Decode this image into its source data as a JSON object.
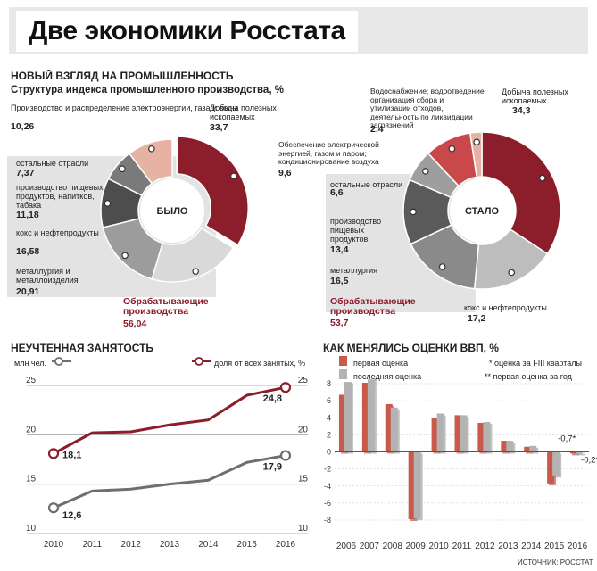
{
  "header": {
    "title": "Две экономики Росстата"
  },
  "industry": {
    "section_title": "НОВЫЙ ВЗГЛЯД НА ПРОМЫШЛЕННОСТЬ",
    "subtitle": "Структура индекса промышленного производства, %"
  },
  "employment": {
    "section_title": "НЕУЧТЕННАЯ ЗАНЯТОСТЬ"
  },
  "gdp": {
    "section_title": "КАК МЕНЯЛИСЬ ОЦЕНКИ ВВП, %"
  },
  "source": "ИСТОЧНИК: РОССТАТ",
  "colors": {
    "dark_red": "#8c1d2a",
    "red": "#c9494a",
    "pink": "#e6b2a4",
    "dark_gray": "#5a5a5a",
    "mid_gray": "#7d7d7d",
    "gray": "#9e9e9e",
    "light_gray": "#bdbdbd",
    "lighter_gray": "#d6d6d6"
  },
  "chart_data": [
    {
      "type": "pie",
      "center_label": "БЫЛО",
      "slices": [
        {
          "label": "Добыча полезных ископаемых",
          "value": 33.7,
          "value_text": "33,7",
          "color": "#8c1d2a"
        },
        {
          "label": "металлургия и металлоизделия",
          "value": 20.91,
          "value_text": "20,91",
          "color": "#d9d9d9"
        },
        {
          "label": "кокс и нефтепродукты",
          "value": 16.58,
          "value_text": "16,58",
          "color": "#9c9c9c"
        },
        {
          "label": "производство пищевых продуктов, напитков, табака",
          "value": 11.18,
          "value_text": "11,18",
          "color": "#4d4d4d"
        },
        {
          "label": "остальные отрасли",
          "value": 7.37,
          "value_text": "7,37",
          "color": "#7a7a7a"
        },
        {
          "label": "Производство и распределение электроэнергии, газа и воды",
          "value": 10.26,
          "value_text": "10,26",
          "color": "#e6b2a4"
        }
      ],
      "group_label": "Обрабатывающие производства",
      "group_value_text": "56,04"
    },
    {
      "type": "pie",
      "center_label": "СТАЛО",
      "slices": [
        {
          "label": "Добыча полезных ископаемых",
          "value": 34.3,
          "value_text": "34,3",
          "color": "#8c1d2a"
        },
        {
          "label": "кокс и нефтепродукты",
          "value": 17.2,
          "value_text": "17,2",
          "color": "#bdbdbd"
        },
        {
          "label": "металлургия",
          "value": 16.5,
          "value_text": "16,5",
          "color": "#8a8a8a"
        },
        {
          "label": "производство пищевых продуктов",
          "value": 13.4,
          "value_text": "13,4",
          "color": "#5a5a5a"
        },
        {
          "label": "остальные отрасли",
          "value": 6.6,
          "value_text": "6,6",
          "color": "#9e9e9e"
        },
        {
          "label": "Обеспечение электрической энергией, газом и паром; кондиционирование воздуха",
          "value": 9.6,
          "value_text": "9,6",
          "color": "#c9494a"
        },
        {
          "label": "Водоснабжение; водоотведение, организация сбора и утилизации отходов, деятельность по ликвидации загрязнений",
          "value": 2.4,
          "value_text": "2,4",
          "color": "#e6b2a4"
        }
      ],
      "group_label": "Обрабатывающие производства",
      "group_value_text": "53,7"
    },
    {
      "type": "line",
      "x": [
        "2010",
        "2011",
        "2012",
        "2013",
        "2014",
        "2015",
        "2016"
      ],
      "ylim": [
        10,
        25
      ],
      "yticks": [
        "10",
        "15",
        "20",
        "25"
      ],
      "series": [
        {
          "name": "млн чел.",
          "values": [
            12.6,
            14.3,
            14.5,
            15.0,
            15.4,
            17.2,
            17.9
          ],
          "color": "#6e6e6e",
          "end_labels": {
            "first": "12,6",
            "last": "17,9"
          }
        },
        {
          "name": "доля от всех занятых, %",
          "values": [
            18.1,
            20.2,
            20.3,
            21.0,
            21.5,
            24.0,
            24.8
          ],
          "color": "#8c1d2a",
          "end_labels": {
            "first": "18,1",
            "last": "24,8"
          }
        }
      ]
    },
    {
      "type": "bar",
      "categories": [
        "2006",
        "2007",
        "2008",
        "2009",
        "2010",
        "2011",
        "2012",
        "2013",
        "2014",
        "2015",
        "2016"
      ],
      "ylim": [
        -8,
        8
      ],
      "yticks": [
        "-8",
        "-6",
        "-4",
        "-2",
        "0",
        "2",
        "4",
        "6",
        "8"
      ],
      "series": [
        {
          "name": "первая оценка",
          "values": [
            6.7,
            8.1,
            5.6,
            -7.9,
            4.0,
            4.3,
            3.4,
            1.3,
            0.6,
            -3.7,
            -0.2
          ],
          "color": "#c9594a"
        },
        {
          "name": "последняя оценка",
          "values": [
            8.2,
            8.5,
            5.2,
            -7.8,
            4.5,
            4.3,
            3.5,
            1.3,
            0.7,
            -2.8,
            -0.2
          ],
          "color": "#b3b3b3"
        }
      ],
      "annotations": [
        {
          "year": "2015",
          "text": "-0,7*"
        },
        {
          "year": "2016",
          "text": "-0,2**"
        }
      ],
      "notes": [
        "* оценка за I-III кварталы",
        "** первая оценка за год"
      ]
    }
  ]
}
